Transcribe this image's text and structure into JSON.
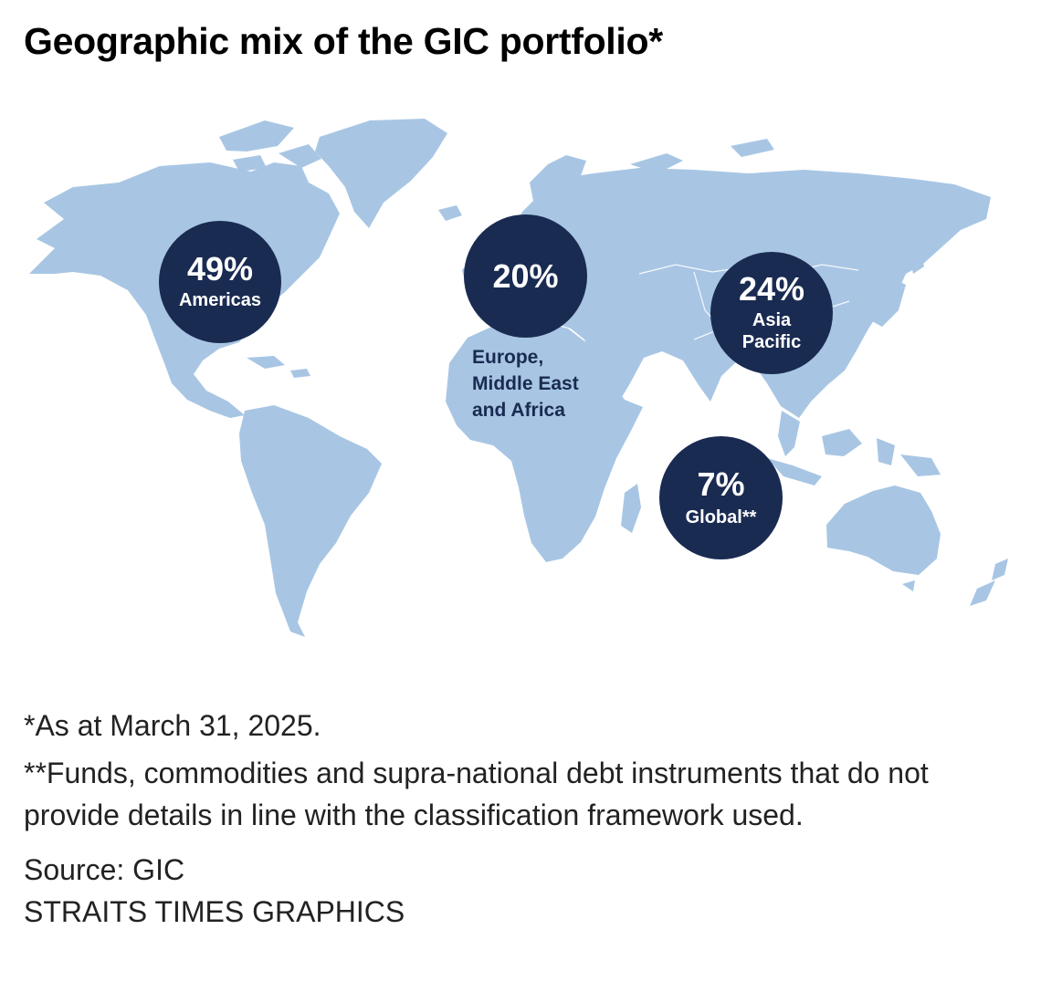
{
  "title": "Geographic mix of the GIC portfolio*",
  "colors": {
    "land": "#a8c6e4",
    "bubble": "#1a2b52",
    "bubble_text": "#ffffff",
    "region_label": "#1a2b52"
  },
  "regions": [
    {
      "id": "americas",
      "percent": "49%",
      "label": "Americas",
      "value": 49
    },
    {
      "id": "emea",
      "percent": "20%",
      "label": "Europe, Middle East and Africa",
      "label_lines": [
        "Europe,",
        "Middle East",
        "and Africa"
      ],
      "value": 20
    },
    {
      "id": "asia-pacific",
      "percent": "24%",
      "label": "Asia Pacific",
      "label_lines": [
        "Asia",
        "Pacific"
      ],
      "value": 24
    },
    {
      "id": "global",
      "percent": "7%",
      "label": "Global**",
      "value": 7
    }
  ],
  "footnotes": {
    "as_at": "*As at March 31, 2025.",
    "global_note": "**Funds, commodities and supra-national debt instruments that do not provide details in line with the classification framework used."
  },
  "source": "Source: GIC",
  "credit": "STRAITS TIMES GRAPHICS"
}
